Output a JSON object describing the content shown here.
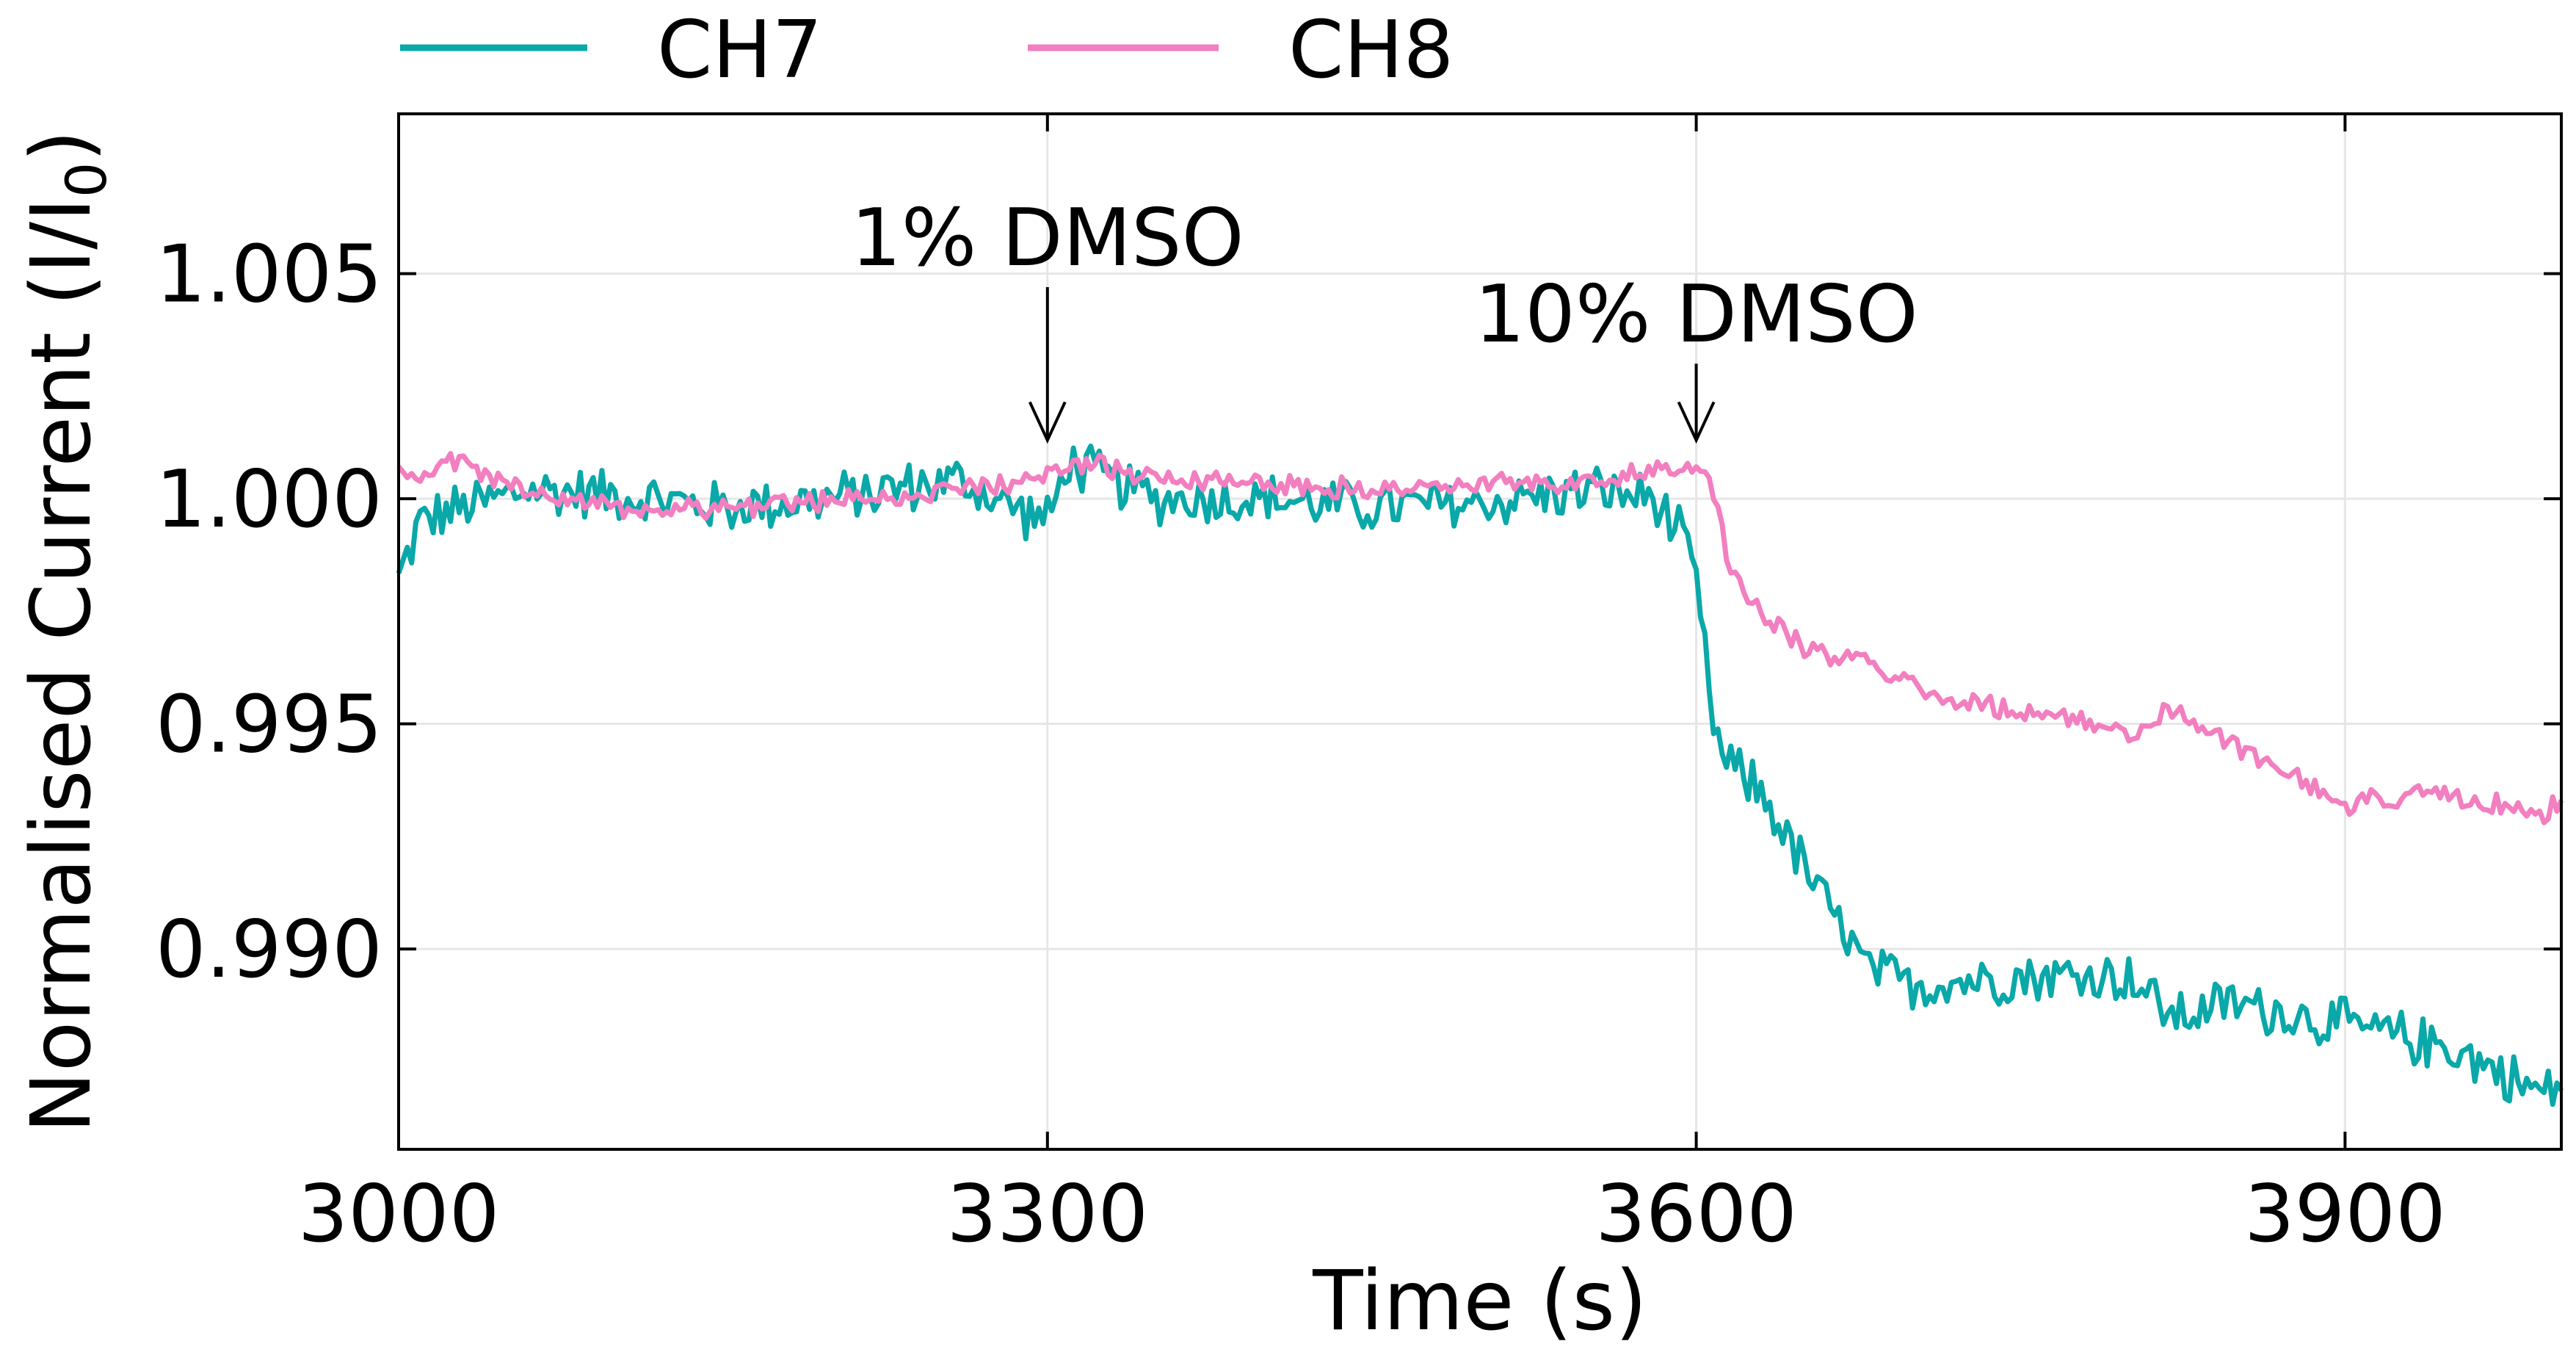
{
  "chart_data": {
    "type": "line",
    "xlabel": "Time (s)",
    "ylabel": "Normalised Current (I/I",
    "ylabel_sub": "0",
    "ylabel_close": ")",
    "xlim": [
      3000,
      4000
    ],
    "ylim": [
      0.98555,
      1.00855
    ],
    "xticks": [
      3000,
      3300,
      3600,
      3900
    ],
    "xtick_labels": [
      "3000",
      "3300",
      "3600",
      "3900"
    ],
    "yticks": [
      0.99,
      0.995,
      1.0,
      1.005
    ],
    "ytick_labels": [
      "0.990",
      "0.995",
      "1.000",
      "1.005"
    ],
    "grid": true,
    "legend_position": "top, outside plot",
    "series": [
      {
        "name": "CH7",
        "color": "#0aa8a8",
        "anchors": [
          [
            3000,
            0.9982
          ],
          [
            3010,
            0.9995
          ],
          [
            3030,
            0.9998
          ],
          [
            3060,
            1.0002
          ],
          [
            3100,
            1.0001
          ],
          [
            3150,
            0.9998
          ],
          [
            3200,
            1.0
          ],
          [
            3240,
            1.0003
          ],
          [
            3260,
            1.0004
          ],
          [
            3280,
            0.9999
          ],
          [
            3300,
            0.9995
          ],
          [
            3310,
            1.0008
          ],
          [
            3350,
            1.0
          ],
          [
            3400,
            1.0
          ],
          [
            3450,
            0.9998
          ],
          [
            3500,
            0.9999
          ],
          [
            3550,
            1.0002
          ],
          [
            3580,
            1.0
          ],
          [
            3595,
            0.999
          ],
          [
            3598,
            0.9985
          ],
          [
            3602,
            0.9975
          ],
          [
            3606,
            0.9955
          ],
          [
            3612,
            0.9942
          ],
          [
            3630,
            0.9935
          ],
          [
            3650,
            0.9918
          ],
          [
            3660,
            0.991
          ],
          [
            3680,
            0.9895
          ],
          [
            3700,
            0.9892
          ],
          [
            3750,
            0.9894
          ],
          [
            3800,
            0.9894
          ],
          [
            3820,
            0.9885
          ],
          [
            3850,
            0.9888
          ],
          [
            3880,
            0.9885
          ],
          [
            3900,
            0.9883
          ],
          [
            3950,
            0.9878
          ],
          [
            3970,
            0.9873
          ],
          [
            3990,
            0.9868
          ],
          [
            4000,
            0.987
          ]
        ],
        "noise": 0.00065
      },
      {
        "name": "CH8",
        "color": "#f27fc0",
        "anchors": [
          [
            3000,
            1.0005
          ],
          [
            3030,
            1.0008
          ],
          [
            3050,
            1.0003
          ],
          [
            3100,
            0.9998
          ],
          [
            3150,
            0.9998
          ],
          [
            3200,
            1.0
          ],
          [
            3250,
            1.0001
          ],
          [
            3290,
            1.0004
          ],
          [
            3310,
            1.0008
          ],
          [
            3350,
            1.0005
          ],
          [
            3400,
            1.0004
          ],
          [
            3450,
            1.0002
          ],
          [
            3500,
            1.0003
          ],
          [
            3550,
            1.0004
          ],
          [
            3595,
            1.0007
          ],
          [
            3600,
            1.0009
          ],
          [
            3606,
            1.0005
          ],
          [
            3615,
            0.9985
          ],
          [
            3630,
            0.9975
          ],
          [
            3650,
            0.9967
          ],
          [
            3680,
            0.9963
          ],
          [
            3720,
            0.9955
          ],
          [
            3760,
            0.9952
          ],
          [
            3800,
            0.9948
          ],
          [
            3820,
            0.9953
          ],
          [
            3850,
            0.9945
          ],
          [
            3880,
            0.9938
          ],
          [
            3900,
            0.9932
          ],
          [
            3930,
            0.9934
          ],
          [
            3960,
            0.9933
          ],
          [
            3990,
            0.993
          ],
          [
            4000,
            0.9932
          ]
        ],
        "noise": 0.00028
      }
    ],
    "annotations": [
      {
        "text": "1% DMSO",
        "x": 3300,
        "y_arrow_start": 1.0047,
        "y_arrow_end": 1.0013
      },
      {
        "text": "10% DMSO",
        "x": 3600,
        "y_arrow_start": 1.003,
        "y_arrow_end": 1.0013
      }
    ]
  }
}
